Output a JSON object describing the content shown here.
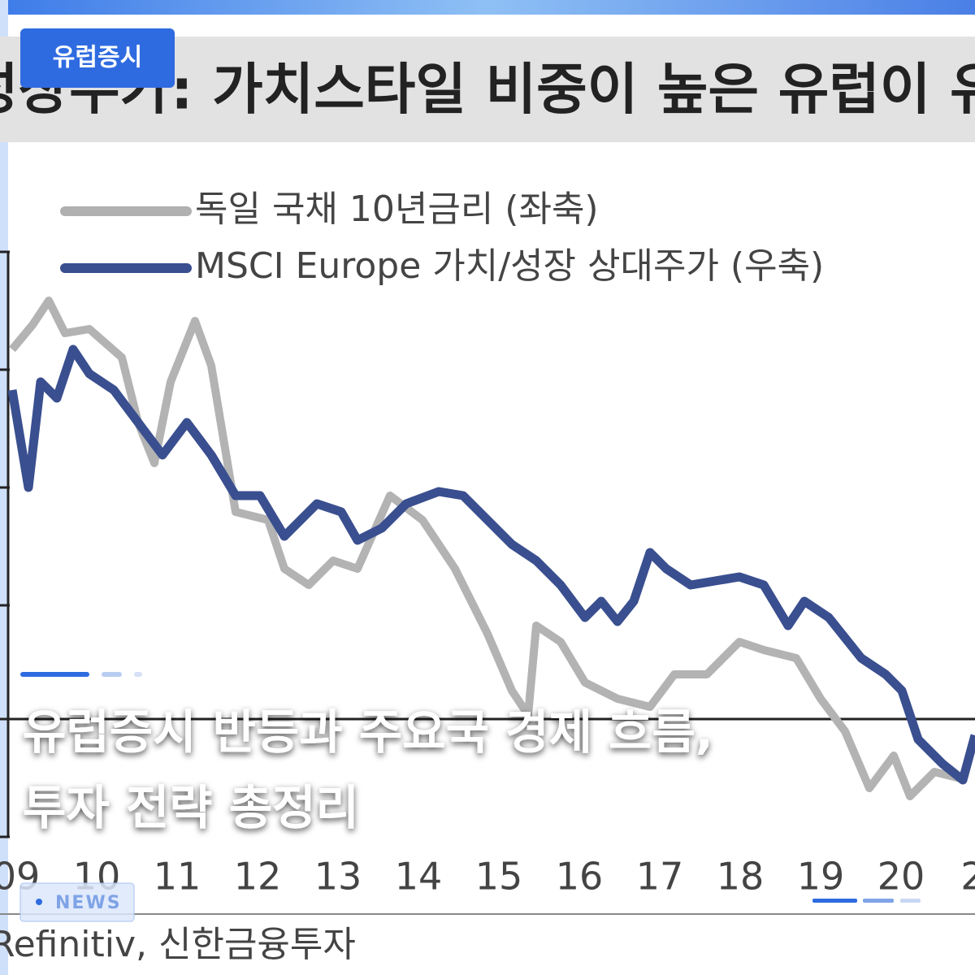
{
  "badge": "유럽증시",
  "image": {
    "title": "성장주가: 가치스타일 비중이 높은 유럽이 유",
    "legend": [
      "독일 국채 10년금리 (좌축)",
      "MSCI Europe 가치/성장 상대주가 (우축)"
    ],
    "x_labels": [
      "09",
      "10",
      "11",
      "12",
      "13",
      "14",
      "15",
      "16",
      "17",
      "18",
      "19",
      "20",
      "2"
    ],
    "source": "Refinitiv, 신한금융투자"
  },
  "headline": [
    "유럽증시 반등과 주요국 경제 흐름,",
    "투자 전략 총정리"
  ],
  "tag": "NEWS"
}
